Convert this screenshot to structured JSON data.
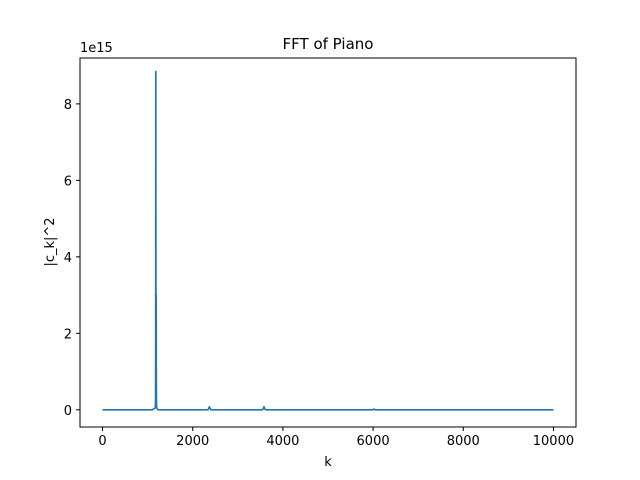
{
  "chart_data": {
    "type": "line",
    "title": "FFT of Piano",
    "xlabel": "k",
    "ylabel": "|c_k|^2",
    "y_offset_label": "1e15",
    "xlim": [
      -500,
      10500
    ],
    "ylim": [
      -0.45,
      9.2
    ],
    "x_ticks": [
      0,
      2000,
      4000,
      6000,
      8000,
      10000
    ],
    "y_ticks": [
      0,
      2,
      4,
      6,
      8
    ],
    "grid": false,
    "series": [
      {
        "color": "#1f77b4",
        "x": [
          0,
          1100,
          1170,
          1175,
          1178,
          1180,
          1182,
          1185,
          1190,
          1193,
          1196,
          1200,
          1230,
          2340,
          2360,
          2370,
          2380,
          2400,
          3550,
          3570,
          3580,
          3590,
          3610,
          6000,
          6020,
          6040,
          10000
        ],
        "y": [
          0,
          0,
          0.05,
          0.25,
          2.0,
          8.85,
          8.8,
          1.7,
          3.0,
          0.9,
          0.2,
          0.05,
          0,
          0,
          0.05,
          0.08,
          0.05,
          0,
          0,
          0.05,
          0.08,
          0.05,
          0,
          0,
          0.02,
          0,
          0
        ]
      }
    ]
  }
}
